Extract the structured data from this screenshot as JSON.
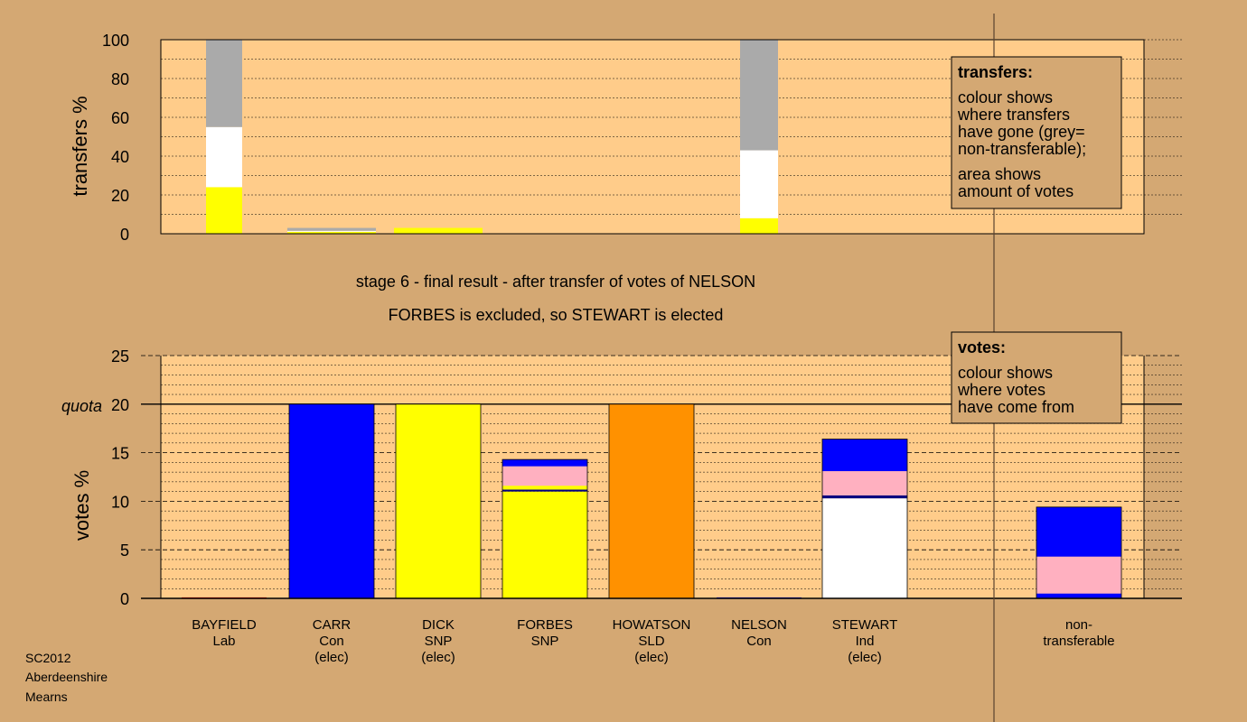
{
  "colors": {
    "page_bg": "#d4a873",
    "plot_bg": "#ffcc8a",
    "grid": "#000000",
    "Con": "#0000ff",
    "SNP": "#ffff00",
    "SLD": "#ff9100",
    "Ind": "#ffffff",
    "Lab": "#ff0000",
    "pink": "#ffb0c0",
    "grey": "#aaaaaa",
    "navy": "#000080"
  },
  "caption": {
    "line1": "stage 6 - final result - after transfer of votes of NELSON",
    "line2": "FORBES is excluded, so STEWART is elected"
  },
  "footer": {
    "line1": "SC2012",
    "line2": "Aberdeenshire",
    "line3": "Mearns"
  },
  "chart_data": [
    {
      "type": "bar",
      "stacked": true,
      "ylabel": "transfers %",
      "ylim": [
        0,
        100
      ],
      "yticks": [
        0,
        20,
        40,
        60,
        80,
        100
      ],
      "grid": true,
      "categories": [
        "BAYFIELD",
        "CARR",
        "DICK",
        "FORBES",
        "HOWATSON",
        "NELSON",
        "STEWART"
      ],
      "series": [
        {
          "values": [
            24,
            1,
            3,
            0,
            0,
            8,
            0
          ],
          "color": "#ffff00"
        },
        {
          "values": [
            31,
            0.5,
            0,
            0,
            0,
            35,
            0
          ],
          "color": "#ffffff"
        },
        {
          "values": [
            45,
            1.5,
            0,
            0,
            0,
            57,
            0
          ],
          "color": "#aaaaaa"
        }
      ],
      "legend_box": {
        "heading": "transfers:",
        "lines": [
          "colour shows",
          "where transfers",
          "have gone (grey=",
          "non-transferable);",
          "area shows",
          "amount of votes"
        ]
      }
    },
    {
      "type": "bar",
      "stacked": true,
      "ylabel": "votes %",
      "ylim": [
        0,
        25
      ],
      "yticks": [
        0,
        5,
        10,
        15,
        20,
        25
      ],
      "quota": {
        "value": 20,
        "label": "quota"
      },
      "grid": true,
      "categories": [
        {
          "name": "BAYFIELD",
          "party": "Lab",
          "status": ""
        },
        {
          "name": "CARR",
          "party": "Con",
          "status": "(elec)"
        },
        {
          "name": "DICK",
          "party": "SNP",
          "status": "(elec)"
        },
        {
          "name": "FORBES",
          "party": "SNP",
          "status": ""
        },
        {
          "name": "HOWATSON",
          "party": "SLD",
          "status": "(elec)"
        },
        {
          "name": "NELSON",
          "party": "Con",
          "status": ""
        },
        {
          "name": "STEWART",
          "party": "Ind",
          "status": "(elec)"
        },
        {
          "name": "",
          "party": "",
          "status": ""
        },
        {
          "name": "non-",
          "party": "transferable",
          "status": ""
        }
      ],
      "stacks": [
        [
          {
            "value": 0.1,
            "color": "#ff0000"
          }
        ],
        [
          {
            "value": 20,
            "color": "#0000ff"
          }
        ],
        [
          {
            "value": 20,
            "color": "#ffff00"
          }
        ],
        [
          {
            "value": 11.0,
            "color": "#ffff00"
          },
          {
            "value": 0.2,
            "color": "#000080"
          },
          {
            "value": 0.4,
            "color": "#ffff00"
          },
          {
            "value": 2.0,
            "color": "#ffb0c0"
          },
          {
            "value": 0.7,
            "color": "#0000ff"
          }
        ],
        [
          {
            "value": 20,
            "color": "#ff9100"
          }
        ],
        [
          {
            "value": 0.1,
            "color": "#0000ff"
          }
        ],
        [
          {
            "value": 10.3,
            "color": "#ffffff"
          },
          {
            "value": 0.3,
            "color": "#000080"
          },
          {
            "value": 2.5,
            "color": "#ffb0c0"
          },
          {
            "value": 3.3,
            "color": "#0000ff"
          }
        ],
        [],
        [
          {
            "value": 0.5,
            "color": "#0000ff"
          },
          {
            "value": 3.8,
            "color": "#ffb0c0"
          },
          {
            "value": 5.1,
            "color": "#0000ff"
          }
        ]
      ],
      "legend_box": {
        "heading": "votes:",
        "lines": [
          "colour shows",
          "where votes",
          "have come from"
        ]
      }
    }
  ]
}
